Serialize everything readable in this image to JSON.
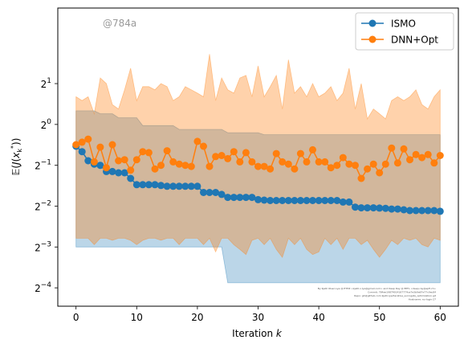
{
  "chart_data": {
    "type": "line",
    "xlabel": "Iteration k",
    "ylabel": "E(J(x_k*))",
    "xlim": [
      -3,
      63
    ],
    "ylim_log2": [
      -4.45,
      2.85
    ],
    "y_scale": "log2",
    "grid": false,
    "legend_position": "top-right",
    "x_ticks": [
      0,
      10,
      20,
      30,
      40,
      50,
      60
    ],
    "y_ticks_exponent": [
      -4,
      -3,
      -2,
      -1,
      0,
      1
    ],
    "x": [
      0,
      1,
      2,
      3,
      4,
      5,
      6,
      7,
      8,
      9,
      10,
      11,
      12,
      13,
      14,
      15,
      16,
      17,
      18,
      19,
      20,
      21,
      22,
      23,
      24,
      25,
      26,
      27,
      28,
      29,
      30,
      31,
      32,
      33,
      34,
      35,
      36,
      37,
      38,
      39,
      40,
      41,
      42,
      43,
      44,
      45,
      46,
      47,
      48,
      49,
      50,
      51,
      52,
      53,
      54,
      55,
      56,
      57,
      58,
      59,
      60
    ],
    "series": [
      {
        "name": "ISMO",
        "color": "#1f77b4",
        "values": [
          0.69,
          0.63,
          0.54,
          0.51,
          0.5,
          0.45,
          0.45,
          0.44,
          0.44,
          0.4,
          0.36,
          0.36,
          0.36,
          0.36,
          0.355,
          0.35,
          0.35,
          0.35,
          0.35,
          0.35,
          0.35,
          0.315,
          0.315,
          0.315,
          0.305,
          0.29,
          0.29,
          0.29,
          0.29,
          0.29,
          0.279,
          0.277,
          0.275,
          0.275,
          0.275,
          0.275,
          0.275,
          0.275,
          0.275,
          0.275,
          0.275,
          0.275,
          0.275,
          0.275,
          0.268,
          0.268,
          0.246,
          0.243,
          0.243,
          0.243,
          0.242,
          0.241,
          0.238,
          0.238,
          0.235,
          0.232,
          0.232,
          0.232,
          0.232,
          0.232,
          0.229
        ],
        "band_upper": [
          1.26,
          1.26,
          1.26,
          1.26,
          1.2,
          1.2,
          1.2,
          1.12,
          1.12,
          1.12,
          1.12,
          0.98,
          0.98,
          0.98,
          0.98,
          0.98,
          0.98,
          0.92,
          0.92,
          0.92,
          0.92,
          0.92,
          0.92,
          0.92,
          0.92,
          0.87,
          0.87,
          0.87,
          0.87,
          0.87,
          0.87,
          0.84,
          0.84,
          0.84,
          0.84,
          0.84,
          0.84,
          0.84,
          0.84,
          0.84,
          0.84,
          0.84,
          0.84,
          0.84,
          0.84,
          0.84,
          0.84,
          0.84,
          0.84,
          0.84,
          0.84,
          0.84,
          0.84,
          0.84,
          0.84,
          0.84,
          0.84,
          0.84,
          0.84,
          0.84,
          0.84
        ],
        "band_lower": [
          0.125,
          0.125,
          0.125,
          0.125,
          0.125,
          0.125,
          0.125,
          0.125,
          0.125,
          0.125,
          0.125,
          0.125,
          0.125,
          0.125,
          0.125,
          0.125,
          0.125,
          0.125,
          0.125,
          0.125,
          0.125,
          0.125,
          0.125,
          0.125,
          0.125,
          0.068,
          0.068,
          0.068,
          0.068,
          0.068,
          0.068,
          0.068,
          0.068,
          0.068,
          0.068,
          0.068,
          0.068,
          0.068,
          0.068,
          0.068,
          0.068,
          0.068,
          0.068,
          0.068,
          0.068,
          0.068,
          0.068,
          0.068,
          0.068,
          0.068,
          0.068,
          0.068,
          0.068,
          0.068,
          0.068,
          0.068,
          0.068,
          0.068,
          0.068,
          0.068,
          0.068
        ]
      },
      {
        "name": "DNN+Opt",
        "color": "#ff7f0e",
        "values": [
          0.71,
          0.74,
          0.78,
          0.53,
          0.68,
          0.48,
          0.71,
          0.54,
          0.55,
          0.46,
          0.55,
          0.63,
          0.62,
          0.47,
          0.5,
          0.64,
          0.53,
          0.51,
          0.5,
          0.49,
          0.75,
          0.69,
          0.49,
          0.58,
          0.59,
          0.56,
          0.63,
          0.53,
          0.62,
          0.53,
          0.49,
          0.49,
          0.47,
          0.61,
          0.53,
          0.51,
          0.47,
          0.61,
          0.53,
          0.65,
          0.53,
          0.53,
          0.48,
          0.5,
          0.57,
          0.51,
          0.5,
          0.4,
          0.47,
          0.51,
          0.44,
          0.51,
          0.67,
          0.52,
          0.66,
          0.55,
          0.6,
          0.57,
          0.6,
          0.52,
          0.59
        ],
        "band_upper": [
          1.6,
          1.5,
          1.6,
          1.2,
          2.2,
          2.0,
          1.4,
          1.3,
          1.8,
          2.6,
          1.5,
          1.9,
          1.9,
          1.8,
          2.0,
          1.9,
          1.5,
          1.6,
          1.9,
          1.8,
          1.7,
          1.6,
          3.3,
          1.5,
          2.2,
          1.8,
          1.7,
          2.2,
          2.3,
          1.6,
          2.7,
          1.6,
          1.9,
          2.3,
          1.3,
          3.0,
          1.7,
          1.9,
          1.6,
          2.0,
          1.6,
          1.7,
          1.9,
          1.5,
          1.7,
          2.6,
          1.3,
          2.0,
          1.1,
          1.3,
          1.2,
          1.1,
          1.5,
          1.6,
          1.5,
          1.6,
          1.8,
          1.4,
          1.3,
          1.6,
          1.8
        ],
        "band_lower": [
          0.145,
          0.145,
          0.145,
          0.13,
          0.145,
          0.145,
          0.14,
          0.145,
          0.145,
          0.14,
          0.13,
          0.14,
          0.145,
          0.145,
          0.14,
          0.145,
          0.145,
          0.13,
          0.145,
          0.145,
          0.145,
          0.13,
          0.145,
          0.115,
          0.145,
          0.145,
          0.13,
          0.12,
          0.11,
          0.14,
          0.145,
          0.13,
          0.145,
          0.12,
          0.105,
          0.145,
          0.13,
          0.145,
          0.12,
          0.11,
          0.115,
          0.145,
          0.13,
          0.145,
          0.12,
          0.145,
          0.145,
          0.13,
          0.14,
          0.12,
          0.105,
          0.12,
          0.14,
          0.13,
          0.145,
          0.14,
          0.145,
          0.13,
          0.125,
          0.145,
          0.14
        ]
      }
    ],
    "watermark": "@784a",
    "credit_lines": [
      "By Kjetil Olsen Lye @ ETHZ <kjetil.o.lye@gmail.com> and Deep Ray @ EPFL <deep.ray@epfl.ch>",
      "Commit: 784ae19874914187774ca7e3b9a67e77c9ac84",
      "Repo: git@github.com:kjetil-lye/iterative_surrogate_optimization.git",
      "Hostname: eu-login-27"
    ]
  }
}
